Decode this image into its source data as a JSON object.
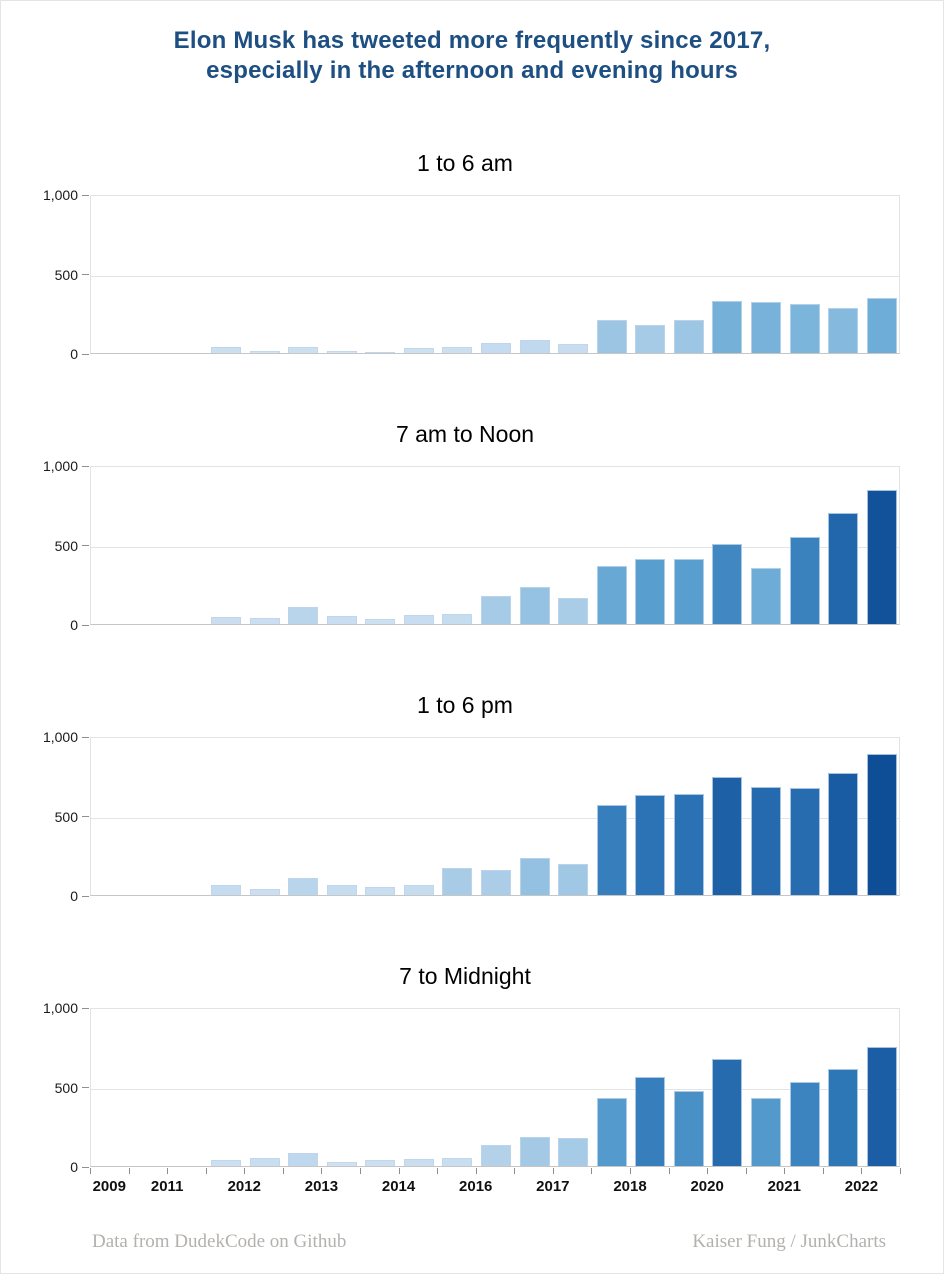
{
  "header": {
    "line1": "Elon Musk has tweeted more frequently since 2017,",
    "line2": "especially in the afternoon and evening hours",
    "color": "#1e4f82"
  },
  "footer": {
    "left": "Data from DudekCode on Github",
    "right": "Kaiser Fung / JunkCharts",
    "color": "#b3b1ae"
  },
  "axes": {
    "n_slots": 21,
    "ylim": [
      0,
      1000
    ],
    "yticks": [
      {
        "value": 0,
        "label": "0"
      },
      {
        "value": 500,
        "label": "500"
      },
      {
        "value": 1000,
        "label": "1,000"
      }
    ],
    "x_ticks": [
      {
        "slot": 1,
        "label": "2009"
      },
      {
        "slot": 3,
        "label": "2011"
      },
      {
        "slot": 5,
        "label": "2012"
      },
      {
        "slot": 7,
        "label": "2013"
      },
      {
        "slot": 9,
        "label": "2014"
      },
      {
        "slot": 11,
        "label": "2016"
      },
      {
        "slot": 13,
        "label": "2017"
      },
      {
        "slot": 15,
        "label": "2018"
      },
      {
        "slot": 17,
        "label": "2020"
      },
      {
        "slot": 19,
        "label": "2021"
      },
      {
        "slot": 21,
        "label": "2022"
      }
    ],
    "grid": "horizontal-only",
    "x_axis_labels_on_last_panel_only": true
  },
  "color_scale": {
    "description": "Bar fill darkens as tweet count rises (sequential blues)",
    "stops": [
      [
        0,
        "#d6e5f4"
      ],
      [
        100,
        "#bcd6ec"
      ],
      [
        200,
        "#9fc7e4"
      ],
      [
        300,
        "#7fb7dc"
      ],
      [
        400,
        "#5aa0d0"
      ],
      [
        500,
        "#4289c2"
      ],
      [
        600,
        "#2f79b8"
      ],
      [
        700,
        "#2266ab"
      ],
      [
        800,
        "#16569e"
      ],
      [
        900,
        "#0d4c95"
      ]
    ]
  },
  "chart_data": [
    {
      "type": "bar",
      "title": "1 to 6 am",
      "start_slot": 4,
      "values": [
        40,
        15,
        35,
        10,
        8,
        30,
        35,
        65,
        80,
        55,
        210,
        175,
        205,
        330,
        320,
        310,
        280,
        345
      ],
      "ylim": [
        0,
        1000
      ]
    },
    {
      "type": "bar",
      "title": "7 am to Noon",
      "start_slot": 4,
      "values": [
        45,
        40,
        110,
        50,
        30,
        55,
        60,
        175,
        230,
        165,
        365,
        410,
        410,
        505,
        350,
        545,
        700,
        840
      ],
      "ylim": [
        0,
        1000
      ]
    },
    {
      "type": "bar",
      "title": "1 to 6 pm",
      "start_slot": 4,
      "values": [
        65,
        40,
        110,
        60,
        50,
        60,
        170,
        160,
        235,
        195,
        565,
        630,
        635,
        740,
        680,
        670,
        765,
        885
      ],
      "ylim": [
        0,
        1000
      ]
    },
    {
      "type": "bar",
      "title": "7 to Midnight",
      "start_slot": 4,
      "values": [
        35,
        50,
        85,
        25,
        35,
        45,
        50,
        130,
        185,
        175,
        425,
        560,
        470,
        675,
        430,
        530,
        610,
        750
      ],
      "ylim": [
        0,
        1000
      ]
    }
  ]
}
